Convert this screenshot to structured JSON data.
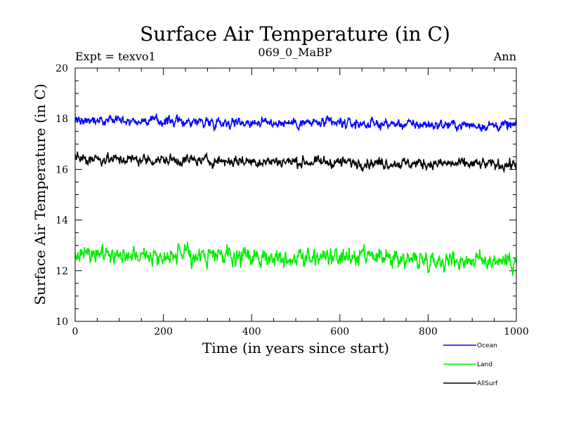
{
  "chart_data": {
    "type": "line",
    "title": "Surface Air Temperature (in C)",
    "subtitle_left": "Expt = texvo1",
    "subtitle_center": "069_0_MaBP",
    "subtitle_right": "Ann",
    "xlabel": "Time (in years since start)",
    "ylabel": "Surface Air Temperature (in C)",
    "xlim": [
      0,
      1000
    ],
    "ylim": [
      10,
      20
    ],
    "xticks": [
      0,
      200,
      400,
      600,
      800,
      1000
    ],
    "yticks": [
      10,
      12,
      14,
      16,
      18,
      20
    ],
    "legend_position": "bottom-right, below plot",
    "series": [
      {
        "name": "Ocean",
        "color": "#0000ff",
        "mean_start": 17.95,
        "mean_end": 17.72,
        "noise": 0.12
      },
      {
        "name": "Land",
        "color": "#00ee00",
        "mean_start": 12.65,
        "mean_end": 12.4,
        "noise": 0.22
      },
      {
        "name": "AllSurf",
        "color": "#000000",
        "mean_start": 16.42,
        "mean_end": 16.18,
        "noise": 0.13
      }
    ]
  }
}
